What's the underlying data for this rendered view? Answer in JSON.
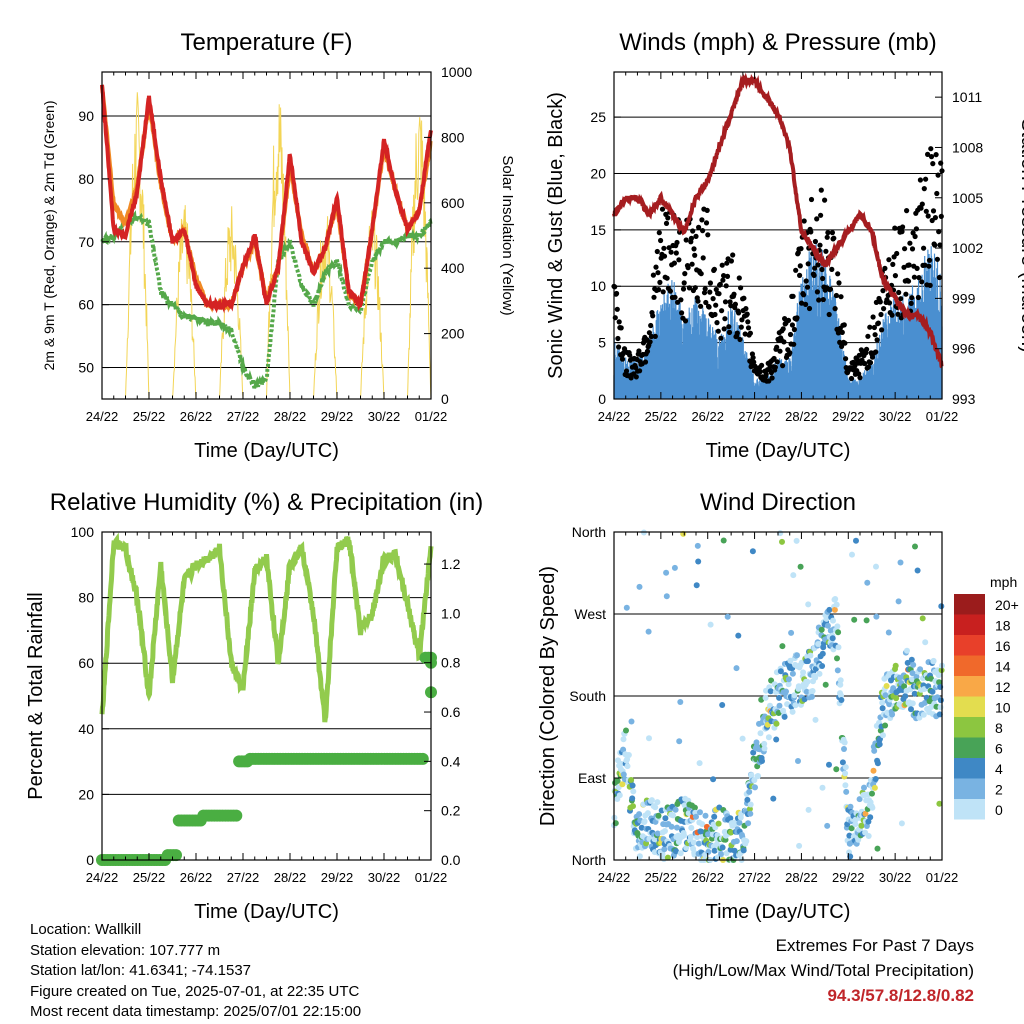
{
  "charts": {
    "temperature": {
      "title": "Temperature (F)",
      "xlabel": "Time (Day/UTC)",
      "ylabel_left": "2m & 9m T (Red, Orange) & 2m Td (Green)",
      "ylabel_right": "Solar Insolation (Yellow)",
      "x_ticks": [
        "24/22",
        "25/22",
        "26/22",
        "27/22",
        "28/22",
        "29/22",
        "30/22",
        "01/22"
      ],
      "y_ticks_left": [
        "50",
        "60",
        "70",
        "80",
        "90"
      ],
      "y_ticks_right": [
        "0",
        "200",
        "400",
        "600",
        "800",
        "1000"
      ]
    },
    "winds": {
      "title": "Winds (mph) & Pressure (mb)",
      "xlabel": "Time (Day/UTC)",
      "ylabel_left": "Sonic Wind & Gust (Blue, Black)",
      "ylabel_right": "Station Pressure (Maroon)",
      "x_ticks": [
        "24/22",
        "25/22",
        "26/22",
        "27/22",
        "28/22",
        "29/22",
        "30/22",
        "01/22"
      ],
      "y_ticks_left": [
        "0",
        "5",
        "10",
        "15",
        "20",
        "25"
      ],
      "y_ticks_right": [
        "993",
        "996",
        "999",
        "1002",
        "1005",
        "1008",
        "1011"
      ]
    },
    "humidity": {
      "title": "Relative Humidity (%) & Precipitation (in)",
      "xlabel": "Time (Day/UTC)",
      "ylabel_left": "Percent & Total Rainfall",
      "x_ticks": [
        "24/22",
        "25/22",
        "26/22",
        "27/22",
        "28/22",
        "29/22",
        "30/22",
        "01/22"
      ],
      "y_ticks_left": [
        "0",
        "20",
        "40",
        "60",
        "80",
        "100"
      ],
      "y_ticks_right": [
        "0.0",
        "0.2",
        "0.4",
        "0.6",
        "0.8",
        "1.0",
        "1.2"
      ]
    },
    "direction": {
      "title": "Wind Direction",
      "xlabel": "Time (Day/UTC)",
      "ylabel_left": "Direction (Colored By Speed)",
      "x_ticks": [
        "24/22",
        "25/22",
        "26/22",
        "27/22",
        "28/22",
        "29/22",
        "30/22",
        "01/22"
      ],
      "y_ticks_left": [
        "North",
        "East",
        "South",
        "West",
        "North"
      ],
      "legend_title": "mph",
      "legend_labels": [
        "20+",
        "18",
        "16",
        "14",
        "12",
        "10",
        "8",
        "6",
        "4",
        "2",
        "0"
      ],
      "legend_colors": [
        "#9b1c1c",
        "#c8201f",
        "#e8402a",
        "#f0692b",
        "#f9a847",
        "#e3dd4f",
        "#8cc640",
        "#48a357",
        "#3f88c5",
        "#79b3e2",
        "#bfe3f7"
      ]
    }
  },
  "chart_data": [
    {
      "type": "line",
      "title": "Temperature (F)",
      "xlabel": "Time (Day/UTC)",
      "x": [
        0,
        0.25,
        0.5,
        0.75,
        1.0,
        1.25,
        1.5,
        1.75,
        2.0,
        2.25,
        2.5,
        2.75,
        3.0,
        3.25,
        3.5,
        3.75,
        4.0,
        4.25,
        4.5,
        4.75,
        5.0,
        5.25,
        5.5,
        5.75,
        6.0,
        6.25,
        6.5,
        6.75,
        7.0
      ],
      "series": [
        {
          "name": "2m T",
          "axis": "left",
          "color": "#d42323",
          "values": [
            95,
            72,
            71,
            78,
            93,
            80,
            70,
            72,
            63,
            60,
            60,
            60,
            66,
            71,
            60,
            66,
            84,
            70,
            65,
            69,
            77,
            62,
            60,
            72,
            86,
            78,
            72,
            75,
            88
          ]
        },
        {
          "name": "9m T",
          "axis": "left",
          "color": "#f08a24",
          "values": [
            95,
            76,
            73,
            79,
            92,
            79,
            70,
            72,
            64,
            60,
            60,
            60,
            66,
            70,
            61,
            66,
            82,
            71,
            65,
            69,
            76,
            62,
            60,
            72,
            85,
            78,
            72,
            75,
            86
          ]
        },
        {
          "name": "2m Td",
          "axis": "left",
          "color": "#55a84a",
          "values": [
            70,
            71,
            73,
            74,
            73,
            62,
            60,
            58,
            58,
            57,
            57,
            56,
            50,
            47,
            48,
            67,
            70,
            63,
            60,
            65,
            67,
            60,
            59,
            67,
            70,
            70,
            71,
            71,
            73
          ]
        },
        {
          "name": "Solar Insolation",
          "axis": "right",
          "color": "#f3d556",
          "values": [
            500,
            0,
            0,
            950,
            0,
            0,
            920,
            0,
            0,
            300,
            0,
            0,
            520,
            0,
            0,
            980,
            0,
            0,
            950,
            0,
            0,
            850,
            0,
            0,
            980,
            0,
            0,
            950,
            0
          ]
        }
      ],
      "ylim_left": [
        45,
        97
      ],
      "ylim_right": [
        0,
        1000
      ]
    },
    {
      "type": "line",
      "title": "Winds (mph) & Pressure (mb)",
      "xlabel": "Time (Day/UTC)",
      "x": [
        0,
        0.25,
        0.5,
        0.75,
        1.0,
        1.25,
        1.5,
        1.75,
        2.0,
        2.25,
        2.5,
        2.75,
        3.0,
        3.25,
        3.5,
        3.75,
        4.0,
        4.25,
        4.5,
        4.75,
        5.0,
        5.25,
        5.5,
        5.75,
        6.0,
        6.25,
        6.5,
        6.75,
        7.0
      ],
      "series": [
        {
          "name": "Sonic Wind",
          "axis": "left",
          "color": "#4a8fd0",
          "values": [
            3,
            2,
            2,
            3,
            5,
            6,
            4,
            5,
            4,
            3,
            5,
            3,
            1,
            1,
            2,
            2,
            6,
            8,
            7,
            5,
            1,
            1,
            2,
            4,
            5,
            5,
            6,
            8,
            6
          ]
        },
        {
          "name": "Gust",
          "axis": "left",
          "color": "#000000",
          "values": [
            9,
            3,
            3,
            6,
            12,
            13,
            11,
            13,
            12,
            8,
            10,
            7,
            3,
            2,
            4,
            6,
            11,
            14,
            13,
            10,
            2,
            3,
            5,
            9,
            12,
            12,
            14,
            16,
            15
          ]
        },
        {
          "name": "Station Pressure",
          "axis": "right",
          "color": "#a51d20",
          "values": [
            1004,
            1005,
            1005,
            1004,
            1005,
            1004,
            1003,
            1005,
            1006,
            1008,
            1010,
            1012,
            1012,
            1011,
            1010,
            1008,
            1003,
            1002,
            1001,
            1002,
            1003,
            1004,
            1003,
            1000,
            999,
            998,
            998,
            997,
            995
          ]
        }
      ],
      "ylim_left": [
        0,
        29
      ],
      "ylim_right": [
        993,
        1012.5
      ]
    },
    {
      "type": "line",
      "title": "Relative Humidity (%) & Precipitation (in)",
      "xlabel": "Time (Day/UTC)",
      "x": [
        0,
        0.25,
        0.5,
        0.75,
        1.0,
        1.25,
        1.5,
        1.75,
        2.0,
        2.25,
        2.5,
        2.75,
        3.0,
        3.25,
        3.5,
        3.75,
        4.0,
        4.25,
        4.5,
        4.75,
        5.0,
        5.25,
        5.5,
        5.75,
        6.0,
        6.25,
        6.5,
        6.75,
        7.0
      ],
      "series": [
        {
          "name": "Relative Humidity",
          "axis": "left",
          "color": "#92cb4d",
          "values": [
            43,
            97,
            95,
            80,
            50,
            90,
            55,
            85,
            90,
            92,
            95,
            60,
            52,
            88,
            92,
            60,
            90,
            95,
            75,
            42,
            95,
            98,
            70,
            75,
            92,
            93,
            78,
            62,
            96
          ]
        },
        {
          "name": "Total Rainfall",
          "axis": "right",
          "color": "#4aae42",
          "values": [
            0,
            0,
            0,
            0,
            0,
            0,
            0.02,
            0.16,
            0.16,
            0.18,
            0.18,
            0.18,
            0.4,
            0.41,
            0.41,
            0.41,
            0.41,
            0.41,
            0.41,
            0.41,
            0.41,
            0.41,
            0.41,
            0.41,
            0.41,
            0.41,
            0.41,
            0.41,
            0.82
          ]
        }
      ],
      "ylim_left": [
        0,
        100
      ],
      "ylim_right": [
        0,
        1.33
      ]
    },
    {
      "type": "scatter",
      "title": "Wind Direction",
      "xlabel": "Time (Day/UTC)",
      "x": [
        0,
        0.25,
        0.5,
        0.75,
        1.0,
        1.25,
        1.5,
        1.75,
        2.0,
        2.25,
        2.5,
        2.75,
        3.0,
        3.25,
        3.5,
        3.75,
        4.0,
        4.25,
        4.5,
        4.75,
        5.0,
        5.25,
        5.5,
        5.75,
        6.0,
        6.25,
        6.5,
        6.75,
        7.0
      ],
      "series": [
        {
          "name": "Direction",
          "values": [
            60,
            120,
            20,
            45,
            30,
            30,
            40,
            35,
            20,
            30,
            20,
            25,
            100,
            160,
            180,
            190,
            200,
            210,
            250,
            260,
            30,
            40,
            80,
            170,
            190,
            200,
            180,
            190,
            185
          ]
        }
      ],
      "ylim": [
        0,
        360
      ]
    }
  ],
  "info": {
    "location": "Location: Wallkill",
    "elevation": "Station elevation: 107.777 m",
    "latlon": "Station lat/lon: 41.6341; -74.1537",
    "created": "Figure created on Tue, 2025-07-01, at 22:35 UTC",
    "timestamp": "Most recent data timestamp: 2025/07/01 22:15:00"
  },
  "extremes": {
    "heading": "Extremes For Past 7 Days",
    "subheading": "(High/Low/Max Wind/Total Precipitation)",
    "values": "94.3/57.8/12.8/0.82"
  }
}
